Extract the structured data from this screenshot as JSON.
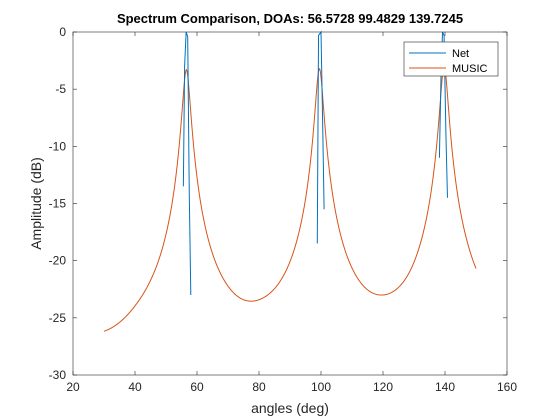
{
  "chart_data": {
    "type": "line",
    "title": "Spectrum Comparison, DOAs:  56.5728 99.4829 139.7245",
    "xlabel": "angles (deg)",
    "ylabel": "Amplitude (dB)",
    "xlim": [
      20,
      160
    ],
    "ylim": [
      -30,
      0
    ],
    "xticks": [
      20,
      40,
      60,
      80,
      100,
      120,
      140,
      160
    ],
    "yticks": [
      0,
      -5,
      -10,
      -15,
      -20,
      -25,
      -30
    ],
    "grid": false,
    "legend_position": "top-right",
    "series": [
      {
        "name": "Net",
        "color": "#0072BD",
        "segments": [
          {
            "x": [
              55.6,
              56.0,
              56.5,
              57.0,
              57.5,
              58.0
            ],
            "y": [
              -13.5,
              -3.0,
              0.0,
              -0.4,
              -14.0,
              -23.0
            ]
          },
          {
            "x": [
              98.8,
              99.2,
              100.0,
              100.6,
              101.0
            ],
            "y": [
              -18.5,
              -0.3,
              0.0,
              -9.0,
              -15.5
            ]
          },
          {
            "x": [
              138.2,
              138.7,
              139.2,
              139.7,
              140.3,
              140.8
            ],
            "y": [
              -11.0,
              -4.0,
              0.0,
              -0.3,
              -9.0,
              -14.5
            ]
          }
        ]
      },
      {
        "name": "MUSIC",
        "color": "#D95319",
        "kind": "peaks",
        "x_range": [
          30,
          150
        ],
        "baseline": -28.8,
        "peaks": [
          {
            "center": 56.5728,
            "height": -3.3
          },
          {
            "center": 99.4829,
            "height": -3.2
          },
          {
            "center": 139.7245,
            "height": -3.0
          }
        ]
      }
    ]
  }
}
